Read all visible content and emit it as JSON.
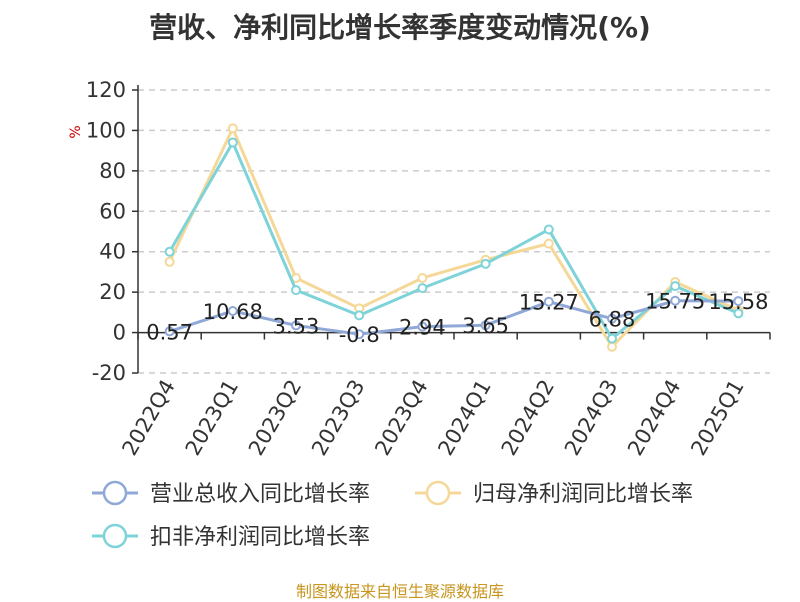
{
  "title": "营收、净利同比增长率季度变动情况(%)",
  "source_text": "制图数据来自恒生聚源数据库",
  "colors": {
    "revenue": "#8fa8d8",
    "parent_profit": "#f5d898",
    "deducted_profit": "#7dd3d8",
    "grid": "#cccccc",
    "axis": "#333333",
    "unit": "#cc0000"
  },
  "chart_data": {
    "type": "line",
    "title": "营收、净利同比增长率季度变动情况(%)",
    "ylabel": "%",
    "xlabel": "",
    "ylim": [
      -20,
      120
    ],
    "yticks": [
      -20,
      0,
      20,
      40,
      60,
      80,
      100,
      120
    ],
    "grid": true,
    "legend_position": "bottom",
    "categories": [
      "2022Q4",
      "2023Q1",
      "2023Q2",
      "2023Q3",
      "2023Q4",
      "2024Q1",
      "2024Q2",
      "2024Q3",
      "2024Q4",
      "2025Q1"
    ],
    "series": [
      {
        "name": "营业总收入同比增长率",
        "values": [
          0.57,
          10.68,
          3.53,
          -0.8,
          2.94,
          3.65,
          15.27,
          6.88,
          15.75,
          15.58
        ],
        "labels": [
          "0.57",
          "10.68",
          "3.53",
          "-0.8",
          "2.94",
          "3.65",
          "15.27",
          "6.88",
          "15.75",
          "15.58"
        ],
        "show_labels": true
      },
      {
        "name": "归母净利润同比增长率",
        "values": [
          35,
          101,
          27,
          12,
          27,
          36,
          44,
          -7,
          25,
          11
        ],
        "show_labels": false
      },
      {
        "name": "扣非净利润同比增长率",
        "values": [
          40,
          94,
          21,
          8.5,
          22,
          34,
          51,
          -3,
          23,
          9.5
        ],
        "show_labels": false
      }
    ]
  }
}
